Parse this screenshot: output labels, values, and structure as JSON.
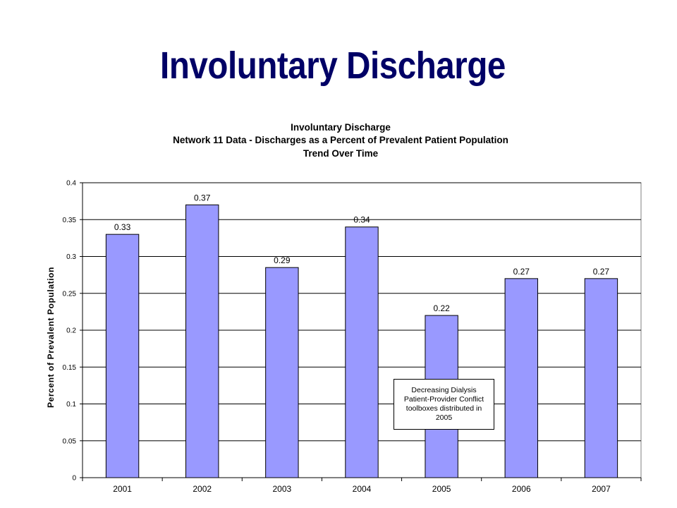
{
  "slide": {
    "title": "Involuntary Discharge"
  },
  "chart_data": {
    "type": "bar",
    "title_lines": [
      "Involuntary Discharge",
      "Network 11 Data - Discharges as a Percent of Prevalent Patient Population",
      "Trend Over Time"
    ],
    "categories": [
      "2001",
      "2002",
      "2003",
      "2004",
      "2005",
      "2006",
      "2007"
    ],
    "values": [
      0.33,
      0.37,
      0.285,
      0.34,
      0.22,
      0.27,
      0.27
    ],
    "data_labels": [
      "0.33",
      "0.37",
      "0.29",
      "0.34",
      "0.22",
      "0.27",
      "0.27"
    ],
    "xlabel": "",
    "ylabel": "Percent of Prevalent Population",
    "ylim": [
      0,
      0.4
    ],
    "yticks": [
      0,
      0.05,
      0.1,
      0.15,
      0.2,
      0.25,
      0.3,
      0.35,
      0.4
    ],
    "ytick_labels": [
      "0",
      "0.05",
      "0.1",
      "0.15",
      "0.2",
      "0.25",
      "0.3",
      "0.35",
      "0.4"
    ],
    "grid": true,
    "legend": "none",
    "colors": {
      "bar_fill": "#9999ff",
      "bar_stroke": "#000000",
      "gridline": "#000000",
      "title": "#000066"
    },
    "annotation": {
      "lines": [
        "Decreasing Dialysis",
        "Patient-Provider Conflict",
        "toolboxes distributed in",
        "2005"
      ]
    }
  }
}
